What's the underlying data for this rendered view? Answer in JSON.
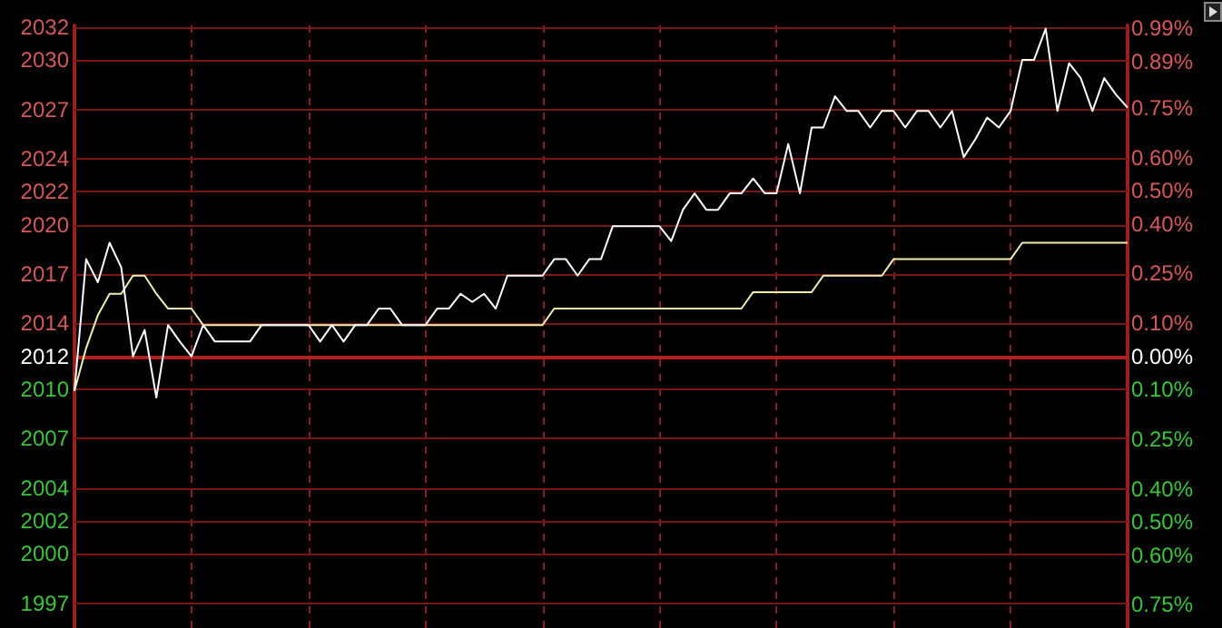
{
  "chart_data": {
    "type": "line",
    "categories": [
      null,
      null,
      null,
      null,
      null,
      null,
      null,
      null,
      null,
      null,
      null,
      null,
      null,
      null,
      null,
      null,
      null,
      null,
      null,
      null,
      null,
      null,
      null,
      null,
      null,
      null,
      null,
      null,
      null,
      null,
      null,
      null,
      null,
      null,
      null,
      null,
      null,
      null,
      null,
      null,
      null,
      null,
      null,
      null,
      null,
      null,
      null,
      null,
      null,
      null,
      null,
      null,
      null,
      null,
      null,
      null,
      null,
      null,
      null,
      null,
      null,
      null,
      null,
      null,
      null,
      null,
      null,
      null,
      null,
      null,
      null,
      null,
      null,
      null,
      null,
      null,
      null,
      null,
      null,
      null,
      null,
      null,
      null,
      null,
      null,
      null,
      null,
      null,
      null,
      null,
      null
    ],
    "series": [
      {
        "color": "#ffffff",
        "values": [
          2009.9,
          2017.9,
          2016.5,
          2018.9,
          2017.4,
          2012.0,
          2013.6,
          2009.5,
          2013.9,
          2012.9,
          2012.0,
          2013.9,
          2012.9,
          2012.9,
          2012.9,
          2012.9,
          2013.9,
          2013.9,
          2013.9,
          2013.9,
          2013.9,
          2012.9,
          2013.9,
          2012.9,
          2013.9,
          2013.9,
          2014.9,
          2014.9,
          2013.9,
          2013.9,
          2013.9,
          2014.9,
          2014.9,
          2015.8,
          2015.3,
          2015.8,
          2014.9,
          2016.9,
          2016.9,
          2016.9,
          2016.9,
          2017.9,
          2017.9,
          2016.9,
          2017.9,
          2017.9,
          2019.9,
          2019.9,
          2019.9,
          2019.9,
          2019.9,
          2019.0,
          2020.9,
          2021.9,
          2020.9,
          2020.9,
          2021.9,
          2021.9,
          2022.8,
          2021.9,
          2021.9,
          2024.9,
          2021.9,
          2025.9,
          2025.9,
          2027.8,
          2026.9,
          2026.9,
          2025.9,
          2026.9,
          2026.9,
          2025.9,
          2026.9,
          2026.9,
          2025.9,
          2026.9,
          2024.1,
          2025.2,
          2026.5,
          2025.9,
          2026.9,
          2030.0,
          2030.0,
          2031.9,
          2026.9,
          2029.8,
          2028.9,
          2026.9,
          2028.9,
          2027.9,
          2027.1
        ]
      },
      {
        "color": "#f2eeb0",
        "values": [
          2009.9,
          2012.5,
          2014.5,
          2015.8,
          2015.8,
          2016.9,
          2016.9,
          2015.8,
          2014.9,
          2014.9,
          2014.9,
          2013.9,
          2013.9,
          2013.9,
          2013.9,
          2013.9,
          2013.9,
          2013.9,
          2013.9,
          2013.9,
          2013.9,
          2013.9,
          2013.9,
          2013.9,
          2013.9,
          2013.9,
          2013.9,
          2013.9,
          2013.9,
          2013.9,
          2013.9,
          2013.9,
          2013.9,
          2013.9,
          2013.9,
          2013.9,
          2013.9,
          2013.9,
          2013.9,
          2013.9,
          2013.9,
          2014.9,
          2014.9,
          2014.9,
          2014.9,
          2014.9,
          2014.9,
          2014.9,
          2014.9,
          2014.9,
          2014.9,
          2014.9,
          2014.9,
          2014.9,
          2014.9,
          2014.9,
          2014.9,
          2014.9,
          2015.9,
          2015.9,
          2015.9,
          2015.9,
          2015.9,
          2015.9,
          2016.9,
          2016.9,
          2016.9,
          2016.9,
          2016.9,
          2016.9,
          2017.9,
          2017.9,
          2017.9,
          2017.9,
          2017.9,
          2017.9,
          2017.9,
          2017.9,
          2017.9,
          2017.9,
          2017.9,
          2018.9,
          2018.9,
          2018.9,
          2018.9,
          2018.9,
          2018.9,
          2018.9,
          2018.9,
          2018.9,
          2018.9
        ]
      }
    ],
    "ylim": [
      1995.5,
      2032.1
    ],
    "yticks": [
      1997,
      2000,
      2002,
      2004,
      2007,
      2010,
      2012,
      2014,
      2017,
      2020,
      2022,
      2024,
      2027,
      2030,
      2032
    ],
    "y2lim": [
      -0.82,
      0.999
    ],
    "y2ticks": [
      {
        "value": -0.75,
        "label": "0.75%"
      },
      {
        "value": -0.6,
        "label": "0.60%"
      },
      {
        "value": -0.5,
        "label": "0.50%"
      },
      {
        "value": -0.4,
        "label": "0.40%"
      },
      {
        "value": -0.25,
        "label": "0.25%"
      },
      {
        "value": -0.1,
        "label": "0.10%"
      },
      {
        "value": 0,
        "label": "0.00%"
      },
      {
        "value": 0.1,
        "label": "0.10%"
      },
      {
        "value": 0.25,
        "label": "0.25%"
      },
      {
        "value": 0.4,
        "label": "0.40%"
      },
      {
        "value": 0.5,
        "label": "0.50%"
      },
      {
        "value": 0.6,
        "label": "0.60%"
      },
      {
        "value": 0.75,
        "label": "0.75%"
      },
      {
        "value": 0.89,
        "label": "0.89%"
      },
      {
        "value": 0.99,
        "label": "0.99%"
      }
    ],
    "ref_lines": [
      {
        "axis": "y",
        "value": 2012.0,
        "color": "#b02020"
      }
    ],
    "grid": true,
    "line_style": "solid"
  }
}
